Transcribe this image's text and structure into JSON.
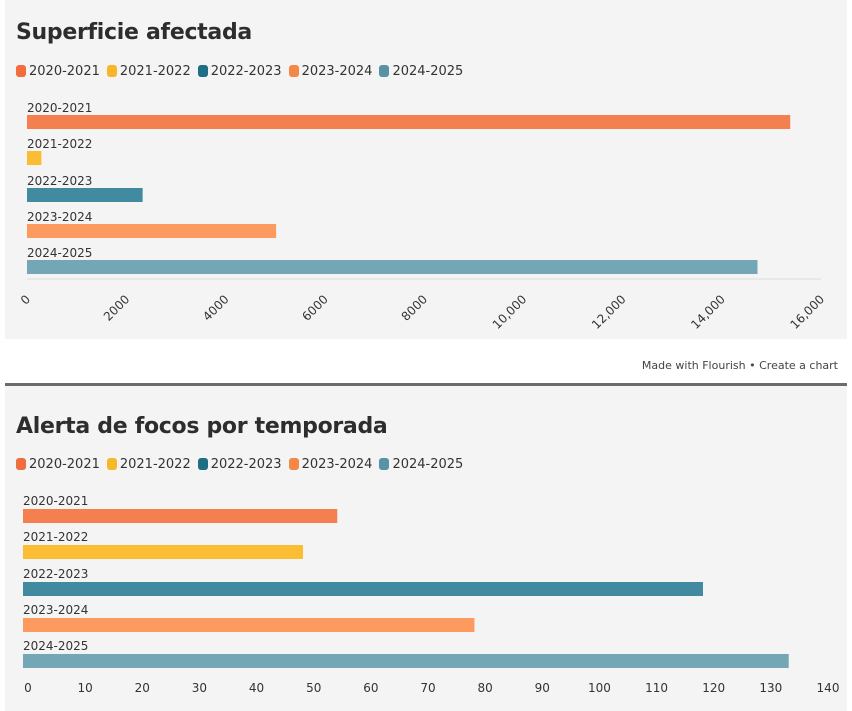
{
  "colors": {
    "2020-2021": "#f5804f",
    "2021-2022": "#fbbd33",
    "2022-2023": "#418aa0",
    "2023-2024": "#fd9a60",
    "2024-2025": "#74a7b5",
    "legend_2020-2021": "#f26d3d",
    "legend_2021-2022": "#f8b62a",
    "legend_2022-2023": "#1e6f86",
    "legend_2023-2024": "#f48846",
    "legend_2024-2025": "#5792a6"
  },
  "credit": {
    "made_with": "Made with Flourish",
    "separator": "•",
    "create": "Create a chart"
  },
  "chart_data": [
    {
      "type": "bar",
      "orientation": "horizontal",
      "title": "Superficie afectada",
      "legend": [
        "2020-2021",
        "2021-2022",
        "2022-2023",
        "2023-2024",
        "2024-2025"
      ],
      "categories": [
        "2020-2021",
        "2021-2022",
        "2022-2023",
        "2023-2024",
        "2024-2025"
      ],
      "values": [
        15380,
        290,
        2330,
        5020,
        14720
      ],
      "xlim": [
        0,
        16000
      ],
      "ticks": [
        0,
        2000,
        4000,
        6000,
        8000,
        10000,
        12000,
        14000,
        16000
      ],
      "tick_labels": [
        "0",
        "2000",
        "4000",
        "6000",
        "8000",
        "10,000",
        "12,000",
        "14,000",
        "16,000"
      ],
      "xlabel": "",
      "ylabel": ""
    },
    {
      "type": "bar",
      "orientation": "horizontal",
      "title": "Alerta de focos por temporada",
      "legend": [
        "2020-2021",
        "2021-2022",
        "2022-2023",
        "2023-2024",
        "2024-2025"
      ],
      "categories": [
        "2020-2021",
        "2021-2022",
        "2022-2023",
        "2023-2024",
        "2024-2025"
      ],
      "values": [
        55,
        49,
        119,
        79,
        134
      ],
      "xlim": [
        0,
        140
      ],
      "ticks": [
        0,
        10,
        20,
        30,
        40,
        50,
        60,
        70,
        80,
        90,
        100,
        110,
        120,
        130,
        140
      ],
      "tick_labels": [
        "0",
        "10",
        "20",
        "30",
        "40",
        "50",
        "60",
        "70",
        "80",
        "90",
        "100",
        "110",
        "120",
        "130",
        "140"
      ],
      "xlabel": "",
      "ylabel": ""
    }
  ]
}
